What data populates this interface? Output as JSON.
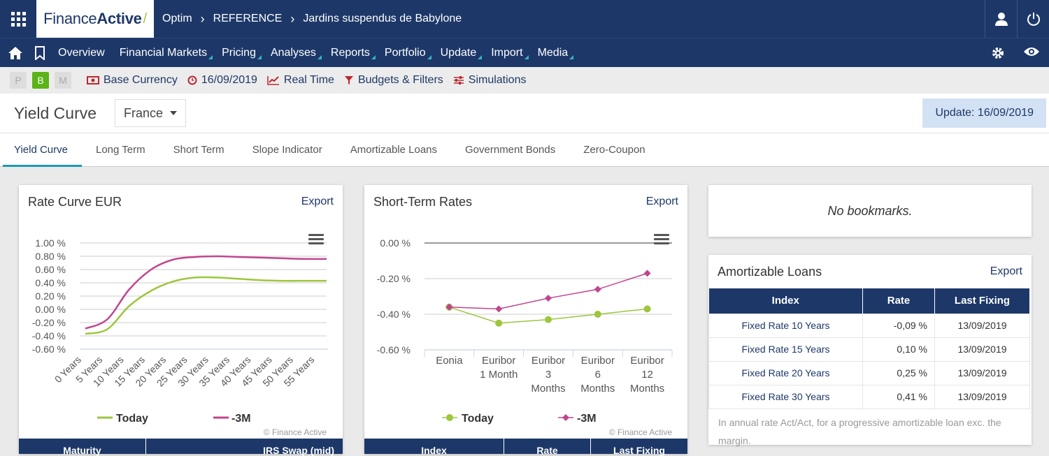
{
  "header": {
    "logo_text_1": "Finance",
    "logo_text_2": "Active",
    "breadcrumb": [
      "Optim",
      "REFERENCE",
      "Jardins suspendus de Babylone"
    ]
  },
  "nav": {
    "items": [
      "Overview",
      "Financial Markets",
      "Pricing",
      "Analyses",
      "Reports",
      "Portfolio",
      "Update",
      "Import",
      "Media"
    ]
  },
  "toolbar": {
    "modes": [
      "P",
      "B",
      "M"
    ],
    "active_mode": "B",
    "base_currency": "Base Currency",
    "date": "16/09/2019",
    "real_time": "Real Time",
    "budgets": "Budgets & Filters",
    "simulations": "Simulations"
  },
  "page": {
    "title": "Yield Curve",
    "country": "France",
    "update_label": "Update: 16/09/2019"
  },
  "tabs": [
    "Yield Curve",
    "Long Term",
    "Short Term",
    "Slope Indicator",
    "Amortizable Loans",
    "Government Bonds",
    "Zero-Coupon"
  ],
  "active_tab": "Yield Curve",
  "rate_curve": {
    "title": "Rate Curve EUR",
    "export": "Export",
    "credit": "© Finance Active",
    "table_headers": [
      "Maturity",
      "IRS Swap (mid)"
    ]
  },
  "short_term": {
    "title": "Short-Term Rates",
    "export": "Export",
    "credit": "© Finance Active",
    "table_headers": [
      "Index",
      "Rate",
      "Last Fixing"
    ]
  },
  "bookmarks": {
    "message": "No bookmarks."
  },
  "amortizable": {
    "title": "Amortizable Loans",
    "export": "Export",
    "headers": [
      "Index",
      "Rate",
      "Last Fixing"
    ],
    "rows": [
      {
        "index": "Fixed Rate 10 Years",
        "rate": "-0,09 %",
        "fixing": "13/09/2019"
      },
      {
        "index": "Fixed Rate 15 Years",
        "rate": "0,10 %",
        "fixing": "13/09/2019"
      },
      {
        "index": "Fixed Rate 20 Years",
        "rate": "0,25 %",
        "fixing": "13/09/2019"
      },
      {
        "index": "Fixed Rate 30 Years",
        "rate": "0,41 %",
        "fixing": "13/09/2019"
      }
    ],
    "note": "In annual rate Act/Act, for a progressive amortizable loan exc. the margin."
  },
  "colors": {
    "today": "#9dc63d",
    "minus3m": "#c0458f",
    "navy": "#1d3868"
  },
  "chart_data": [
    {
      "type": "line",
      "x": [
        "0 Years",
        "5 Years",
        "10 Years",
        "15 Years",
        "20 Years",
        "25 Years",
        "30 Years",
        "35 Years",
        "40 Years",
        "45 Years",
        "50 Years",
        "55 Years"
      ],
      "y_ticks": [
        "1.00 %",
        "0.80 %",
        "0.60 %",
        "0.40 %",
        "0.20 %",
        "0.00 %",
        "-0.20 %",
        "-0.40 %",
        "-0.60 %"
      ],
      "ylim": [
        -0.6,
        1.0
      ],
      "series": [
        {
          "name": "Today",
          "values": [
            -0.37,
            -0.3,
            0.05,
            0.28,
            0.42,
            0.48,
            0.48,
            0.46,
            0.44,
            0.43,
            0.43,
            0.43
          ]
        },
        {
          "name": "-3M",
          "values": [
            -0.29,
            -0.15,
            0.3,
            0.6,
            0.75,
            0.79,
            0.8,
            0.79,
            0.78,
            0.77,
            0.76,
            0.76
          ]
        }
      ],
      "legend": "bottom"
    },
    {
      "type": "line",
      "categories": [
        "Eonia",
        "Euribor 1 Month",
        "Euribor 3 Months",
        "Euribor 6 Months",
        "Euribor 12 Months"
      ],
      "y_ticks": [
        "0.00 %",
        "-0.20 %",
        "-0.40 %",
        "-0.60 %"
      ],
      "ylim": [
        -0.6,
        0.0
      ],
      "series": [
        {
          "name": "Today",
          "values": [
            -0.36,
            -0.45,
            -0.43,
            -0.4,
            -0.37
          ]
        },
        {
          "name": "-3M",
          "values": [
            -0.36,
            -0.37,
            -0.31,
            -0.26,
            -0.17
          ]
        }
      ],
      "legend": "bottom"
    }
  ]
}
